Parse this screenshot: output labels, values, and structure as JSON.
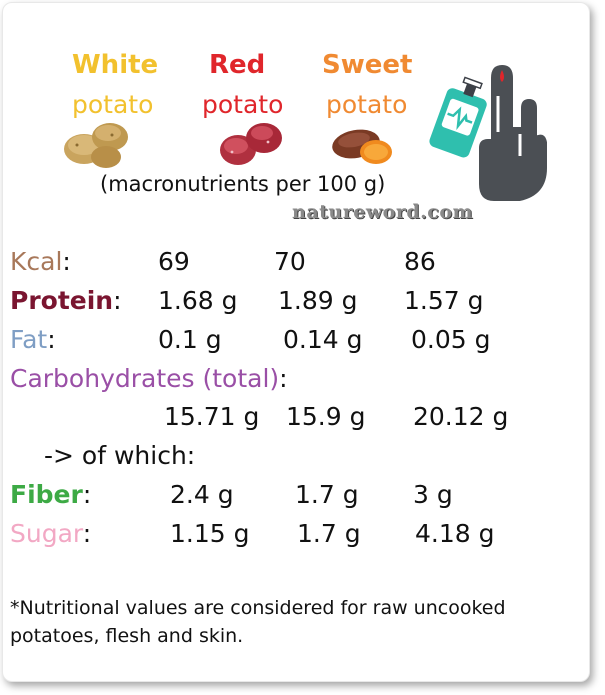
{
  "header": {
    "white": {
      "line1": "White",
      "line2": "potato"
    },
    "red": {
      "line1": "Red",
      "line2": "potato"
    },
    "sweet": {
      "line1": "Sweet",
      "line2": "potato"
    },
    "subtitle": "(macronutrients per 100 g)"
  },
  "watermark": "natureword.com",
  "rows": {
    "kcal": {
      "label": "Kcal",
      "values": [
        "69",
        "70",
        "86"
      ]
    },
    "protein": {
      "label": "Protein",
      "values": [
        "1.68 g",
        "1.89 g",
        "1.57 g"
      ]
    },
    "fat": {
      "label": "Fat",
      "values": [
        "0.1 g",
        "0.14 g",
        "0.05 g"
      ]
    },
    "carbs": {
      "label": "Carbohydrates (total)",
      "values": [
        "15.71 g",
        "15.9 g",
        "20.12 g"
      ]
    },
    "of_which": "-> of which:",
    "fiber": {
      "label": "Fiber",
      "values": [
        "2.4 g",
        "1.7 g",
        "3 g"
      ]
    },
    "sugar": {
      "label": "Sugar",
      "values": [
        "1.15 g",
        "1.7 g",
        "4.18 g"
      ]
    }
  },
  "colon": ":",
  "footnote": "*Nutritional values are considered for raw uncooked potatoes, flesh and skin.",
  "colors": {
    "white_potato": "#f2c12e",
    "red_potato": "#e0262b",
    "sweet_potato": "#f08a32",
    "kcal": "#a8785a",
    "protein": "#7a1530",
    "fat": "#7f9ec4",
    "carbs": "#9a4fa6",
    "fiber": "#3daa45",
    "sugar": "#f2a8c4"
  },
  "icons": [
    "white-potato-icon",
    "red-potato-icon",
    "sweet-potato-icon",
    "glucose-meter-hand-icon"
  ]
}
